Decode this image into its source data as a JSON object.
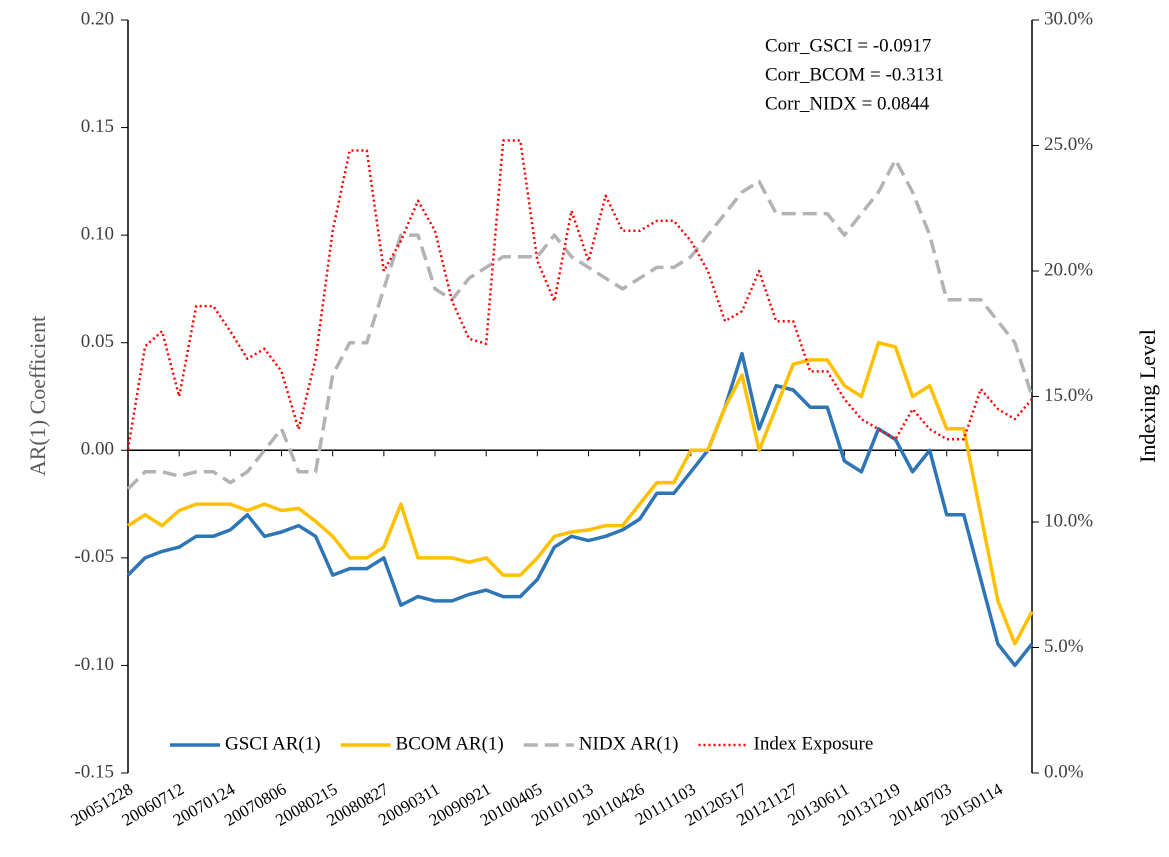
{
  "chart_data": {
    "type": "line",
    "y_label": "AR(1) Coefficient",
    "y2_label": "Indexing Level",
    "annotations": [
      "Corr_GSCI = -0.0917",
      "Corr_BCOM = -0.3131",
      "Corr_NIDX = 0.0844"
    ],
    "categories": [
      "20051228",
      null,
      null,
      "20060712",
      null,
      null,
      "20070124",
      null,
      null,
      "20070806",
      null,
      null,
      "20080215",
      null,
      null,
      "20080827",
      null,
      null,
      "20090311",
      null,
      null,
      "20090921",
      null,
      null,
      "20100405",
      null,
      null,
      "20101013",
      null,
      null,
      "20110426",
      null,
      null,
      "20111103",
      null,
      null,
      "20120517",
      null,
      null,
      "20121127",
      null,
      null,
      "20130611",
      null,
      null,
      "20131219",
      null,
      null,
      "20140703",
      null,
      null,
      "20150114",
      null,
      null
    ],
    "ylim": [
      -0.15,
      0.2
    ],
    "yticks": [
      -0.15,
      {
        "value": -0.1,
        "label": "-0.10"
      },
      -0.05,
      {
        "value": 0,
        "label": "0.00"
      },
      0.05,
      {
        "value": 0.1,
        "label": "0.10"
      },
      0.15,
      {
        "value": 0.2,
        "label": "0.20"
      }
    ],
    "y2lim": [
      0,
      30
    ],
    "y2ticks": [
      {
        "value": 0,
        "label": "0.0%"
      },
      {
        "value": 5,
        "label": "5.0%"
      },
      {
        "value": 10,
        "label": "10.0%"
      },
      {
        "value": 15,
        "label": "15.0%"
      },
      {
        "value": 20,
        "label": "20.0%"
      },
      {
        "value": 25,
        "label": "25.0%"
      },
      {
        "value": 30,
        "label": "30.0%"
      }
    ],
    "legend": "lower center",
    "series": [
      {
        "name": "GSCI AR(1)",
        "color": "#2e75b6",
        "line_style": "solid",
        "values": [
          -0.058,
          -0.05,
          -0.047,
          -0.045,
          -0.04,
          -0.04,
          -0.037,
          -0.03,
          -0.04,
          -0.038,
          -0.035,
          -0.04,
          -0.058,
          -0.055,
          -0.055,
          -0.05,
          -0.072,
          -0.068,
          -0.07,
          -0.07,
          -0.067,
          -0.065,
          -0.068,
          -0.068,
          -0.06,
          -0.045,
          -0.04,
          -0.042,
          -0.04,
          -0.037,
          -0.032,
          -0.02,
          -0.02,
          -0.01,
          0.0,
          0.02,
          0.045,
          0.01,
          0.03,
          0.028,
          0.02,
          0.02,
          -0.005,
          -0.01,
          0.01,
          0.005,
          -0.01,
          0.0,
          -0.03,
          -0.03,
          -0.06,
          -0.09,
          -0.1,
          -0.09
        ]
      },
      {
        "name": "BCOM AR(1)",
        "color": "#ffc000",
        "line_style": "solid",
        "values": [
          -0.035,
          -0.03,
          -0.035,
          -0.028,
          -0.025,
          -0.025,
          -0.025,
          -0.028,
          -0.025,
          -0.028,
          -0.027,
          -0.033,
          -0.04,
          -0.05,
          -0.05,
          -0.045,
          -0.025,
          -0.05,
          -0.05,
          -0.05,
          -0.052,
          -0.05,
          -0.058,
          -0.058,
          -0.05,
          -0.04,
          -0.038,
          -0.037,
          -0.035,
          -0.035,
          -0.025,
          -0.015,
          -0.015,
          0.0,
          0.0,
          0.02,
          0.035,
          0.0,
          0.02,
          0.04,
          0.042,
          0.042,
          0.03,
          0.025,
          0.05,
          0.048,
          0.025,
          0.03,
          0.01,
          0.01,
          -0.03,
          -0.07,
          -0.09,
          -0.075
        ]
      },
      {
        "name": "NIDX AR(1)",
        "color": "#b3b3b3",
        "line_style": "dashed",
        "values": [
          -0.018,
          -0.01,
          -0.01,
          -0.012,
          -0.01,
          -0.01,
          -0.015,
          -0.01,
          0.0,
          0.01,
          -0.01,
          -0.01,
          0.035,
          0.05,
          0.05,
          0.075,
          0.1,
          0.1,
          0.075,
          0.07,
          0.08,
          0.085,
          0.09,
          0.09,
          0.09,
          0.1,
          0.09,
          0.085,
          0.08,
          0.075,
          0.08,
          0.085,
          0.085,
          0.09,
          0.1,
          0.11,
          0.12,
          0.125,
          0.11,
          0.11,
          0.11,
          0.11,
          0.1,
          0.11,
          0.12,
          0.135,
          0.12,
          0.1,
          0.07,
          0.07,
          0.07,
          0.06,
          0.05,
          0.025
        ]
      },
      {
        "name": "Index Exposure",
        "color": "#ff0000",
        "line_style": "dotted",
        "axis": "y2",
        "values": [
          12.9,
          17,
          17.6,
          15,
          18.6,
          18.6,
          17.6,
          16.5,
          16.9,
          16,
          13.7,
          16.5,
          21.6,
          24.8,
          24.8,
          20,
          21.2,
          22.8,
          21.6,
          18.8,
          17.3,
          17.1,
          25.2,
          25.2,
          20.4,
          18.8,
          22.4,
          20.4,
          23,
          21.6,
          21.6,
          22,
          22,
          21.2,
          20,
          18,
          18.4,
          20,
          18,
          18,
          16,
          16,
          14.9,
          14.1,
          13.7,
          13.3,
          14.5,
          13.7,
          13.3,
          13.3,
          15.3,
          14.5,
          14.1,
          14.9
        ]
      }
    ]
  }
}
